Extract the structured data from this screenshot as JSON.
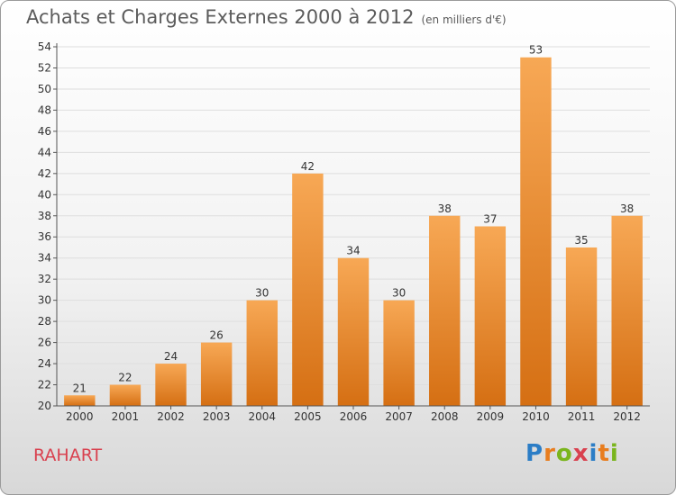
{
  "title": "Achats et Charges Externes 2000 à 2012",
  "subtitle": "(en milliers d'€)",
  "place_label": "RAHART",
  "logo": {
    "text": "Proxiti",
    "letters": [
      "P",
      "r",
      "o",
      "x",
      "i",
      "t",
      "i"
    ],
    "colors": [
      "#2b7dc6",
      "#e87d1e",
      "#7ab51d",
      "#d9414f",
      "#2b7dc6",
      "#e87d1e",
      "#7ab51d"
    ]
  },
  "colors": {
    "bar_top": "#f7a855",
    "bar_bottom": "#d56f13",
    "grid": "#dedede",
    "axis": "#555555"
  },
  "chart_data": {
    "type": "bar",
    "categories": [
      "2000",
      "2001",
      "2002",
      "2003",
      "2004",
      "2005",
      "2006",
      "2007",
      "2008",
      "2009",
      "2010",
      "2011",
      "2012"
    ],
    "values": [
      21,
      22,
      24,
      26,
      30,
      42,
      34,
      30,
      38,
      37,
      53,
      35,
      38
    ],
    "ylim": [
      20,
      54
    ],
    "yticks": [
      20,
      22,
      24,
      26,
      28,
      30,
      32,
      34,
      36,
      38,
      40,
      42,
      44,
      46,
      48,
      50,
      52,
      54
    ],
    "grid": true
  }
}
